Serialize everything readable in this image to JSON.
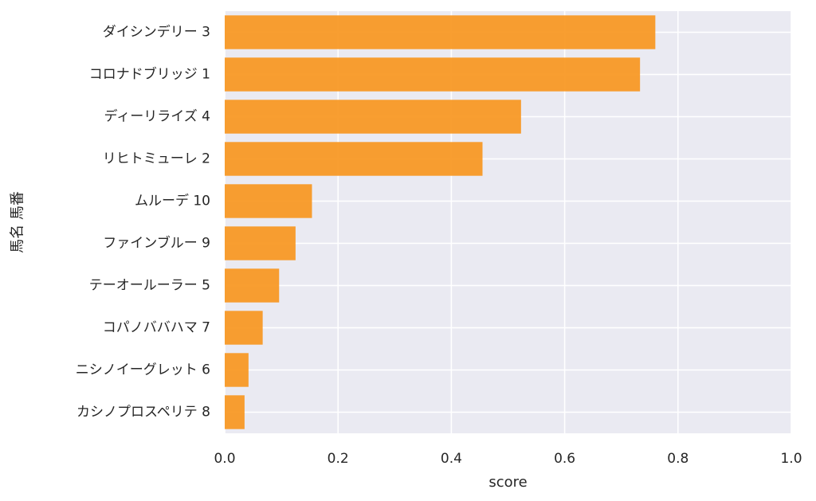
{
  "chart_data": {
    "type": "bar",
    "orientation": "horizontal",
    "title": "",
    "xlabel": "score",
    "ylabel": "馬名 馬番",
    "xlim": [
      0,
      1.0
    ],
    "xticks": [
      0.0,
      0.2,
      0.4,
      0.6,
      0.8,
      1.0
    ],
    "xtick_labels": [
      "0.0",
      "0.2",
      "0.4",
      "0.6",
      "0.8",
      "1.0"
    ],
    "grid": true,
    "bar_color": "#f7961f",
    "background_color": "#eaeaf2",
    "grid_color": "#ffffff",
    "categories": [
      "ダイシンデリー 3",
      "コロナドブリッジ 1",
      "ディーリライズ 4",
      "リヒトミューレ 2",
      "ムルーデ 10",
      "ファインブルー 9",
      "テーオールーラー 5",
      "コパノババハマ 7",
      "ニシノイーグレット 6",
      "カシノプロスペリテ 8"
    ],
    "values": [
      0.76,
      0.733,
      0.523,
      0.455,
      0.154,
      0.125,
      0.096,
      0.067,
      0.042,
      0.035
    ]
  }
}
